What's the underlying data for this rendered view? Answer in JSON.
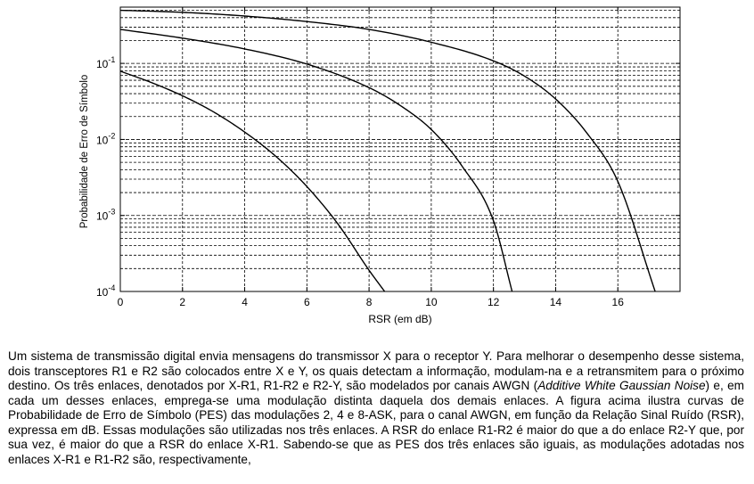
{
  "chart_data": {
    "type": "line",
    "title": "",
    "xlabel": "RSR (em dB)",
    "ylabel": "Probabilidade de Erro de Símbolo",
    "xlim": [
      0,
      18
    ],
    "ylim": [
      0.0001,
      0.55
    ],
    "yscale": "log",
    "xticks": [
      0,
      2,
      4,
      6,
      8,
      10,
      12,
      14,
      16
    ],
    "xtick_labels": [
      "0",
      "2",
      "4",
      "6",
      "8",
      "10",
      "12",
      "14",
      "16"
    ],
    "yticks": [
      {
        "base": "10",
        "exp": "-1",
        "value": 0.1
      },
      {
        "base": "10",
        "exp": "-2",
        "value": 0.01
      },
      {
        "base": "10",
        "exp": "-3",
        "value": 0.001
      },
      {
        "base": "10",
        "exp": "-4",
        "value": 0.0001
      }
    ],
    "grid": true,
    "series": [
      {
        "x": [
          0,
          1,
          2,
          3,
          4,
          5,
          6,
          7,
          8,
          8.5
        ],
        "y": [
          0.079,
          0.056,
          0.0375,
          0.023,
          0.0125,
          0.006,
          0.0024,
          0.00077,
          0.00019,
          0.0001
        ]
      },
      {
        "x": [
          0,
          2,
          4,
          6,
          8,
          9,
          10,
          11,
          12,
          12.6
        ],
        "y": [
          0.28,
          0.215,
          0.155,
          0.098,
          0.048,
          0.028,
          0.0135,
          0.0044,
          0.00085,
          0.0001
        ]
      },
      {
        "x": [
          0,
          2,
          4,
          6,
          8,
          10,
          12,
          13,
          14,
          15,
          16,
          17.2
        ],
        "y": [
          0.5,
          0.47,
          0.42,
          0.355,
          0.28,
          0.19,
          0.108,
          0.068,
          0.034,
          0.0122,
          0.0028,
          0.0001
        ]
      }
    ]
  },
  "text": {
    "p1": "Um sistema de transmissão digital envia mensagens do transmissor X para o receptor Y. Para melhorar o desempenho desse sistema, dois transceptores R1 e R2 são colocados entre X e Y, os quais detectam a informação, modulam-na e a retransmitem para o próximo destino. Os três enlaces, denotados por X-R1, R1-R2 e R2-Y, são modelados por canais AWGN (",
    "p1_italic": "Additive White Gaussian Noise",
    "p2": ") e, em cada um desses enlaces, emprega-se uma modulação distinta daquela dos demais enlaces. A figura acima ilustra curvas de Probabilidade de Erro de Símbolo (PES) das modulações 2, 4 e 8-ASK, para o canal AWGN, em função da Relação Sinal Ruído (RSR), expressa em dB.  Essas modulações são utilizadas nos três enlaces. A RSR do enlace R1-R2 é maior do que a do enlace R2-Y que, por sua vez, é maior do que a RSR do enlace X-R1. Sabendo-se que as PES dos três enlaces são iguais, as modulações adotadas nos enlaces X-R1 e R1-R2 são, respectivamente,"
  }
}
